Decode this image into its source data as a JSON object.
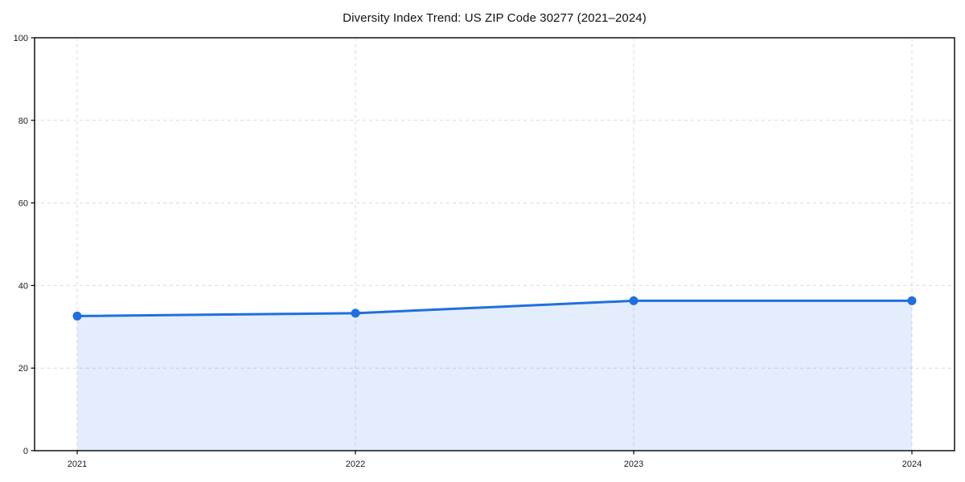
{
  "figure": {
    "background": "#ffffff"
  },
  "chart_data": {
    "type": "area",
    "title": "Diversity Index Trend: US ZIP Code 30277 (2021–2024)",
    "categories": [
      "2021",
      "2022",
      "2023",
      "2024"
    ],
    "series": [
      {
        "name": "Diversity Index",
        "values": [
          32.6,
          33.3,
          36.3,
          36.3
        ]
      }
    ],
    "xlabel": "",
    "ylabel": "",
    "ylim": [
      0,
      100
    ],
    "yticks": [
      0,
      20,
      40,
      60,
      80,
      100
    ],
    "grid": "dashed horizontal and vertical",
    "legend": "none",
    "marker": "circle",
    "colors": {
      "line": "#1f6fe0",
      "marker": "#1f6fe0",
      "area_fill": "rgba(31, 111, 224, 0.12)",
      "grid": "#d9d9d9",
      "axis": "#000000",
      "tick_text": "#1a1a1a",
      "title_text": "#111111"
    }
  }
}
